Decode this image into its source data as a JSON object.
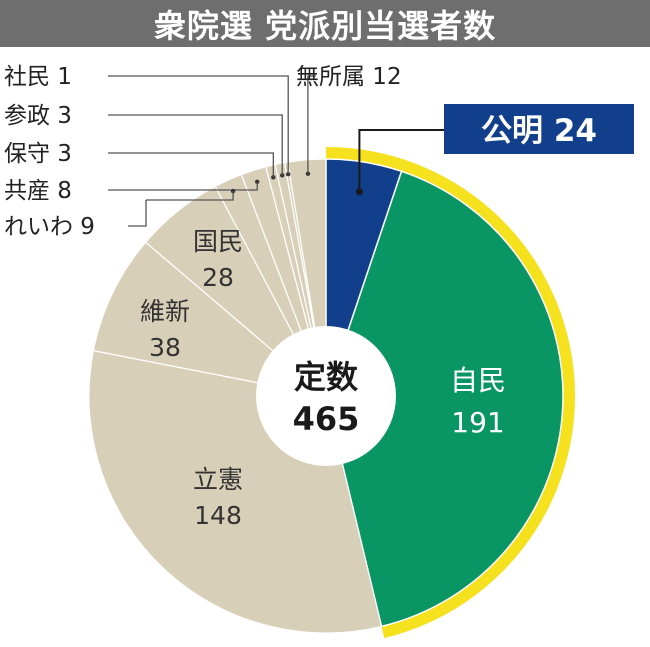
{
  "title": "衆院選 党派別当選者数",
  "center": {
    "line1": "定数",
    "line2": "465"
  },
  "colors": {
    "komei": "#123f8c",
    "jimin": "#0a9664",
    "others": "#d8cfb8",
    "highlight": "#f5e11e",
    "title_bg": "#6e6e6e"
  },
  "chart_data": {
    "type": "pie",
    "total": 465,
    "slices": [
      {
        "label": "公明",
        "value": 24
      },
      {
        "label": "自民",
        "value": 191
      },
      {
        "label": "立憲",
        "value": 148
      },
      {
        "label": "維新",
        "value": 38
      },
      {
        "label": "国民",
        "value": 28
      },
      {
        "label": "れいわ",
        "value": 9
      },
      {
        "label": "共産",
        "value": 8
      },
      {
        "label": "保守",
        "value": 3
      },
      {
        "label": "参政",
        "value": 3
      },
      {
        "label": "社民",
        "value": 1
      },
      {
        "label": "無所属",
        "value": 12
      }
    ]
  }
}
